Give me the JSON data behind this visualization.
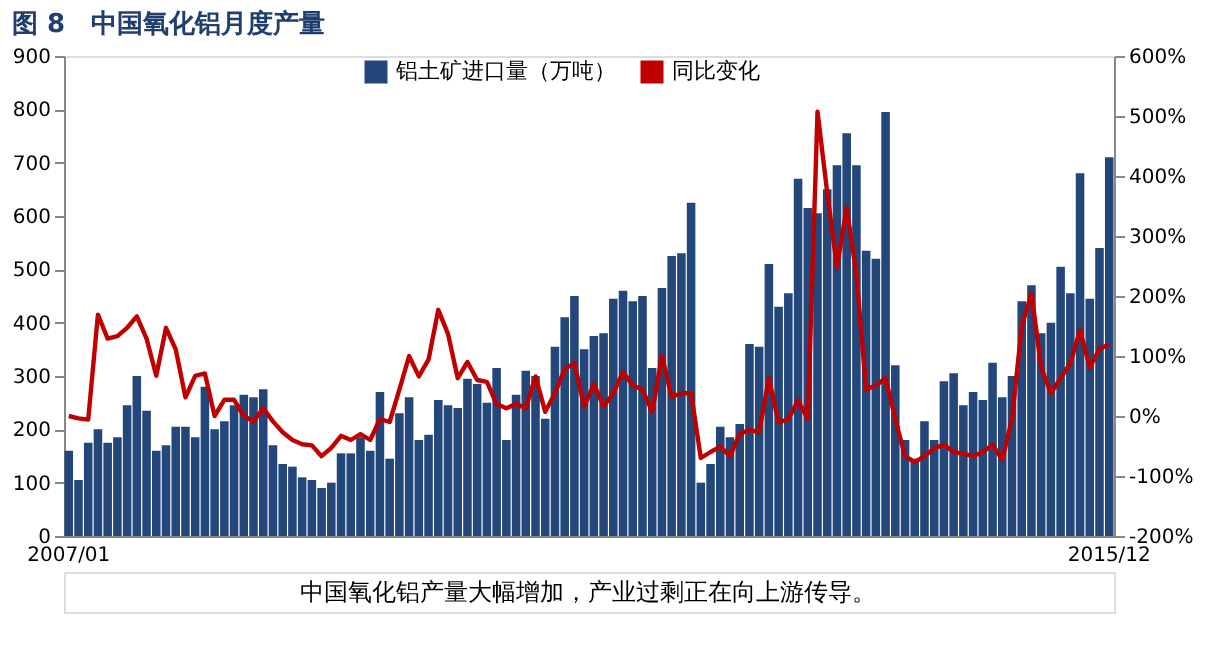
{
  "chart_data": {
    "type": "bar",
    "title": "图 8　中国氧化铝月度产量",
    "categories": [
      "2007/01",
      null,
      null,
      null,
      null,
      null,
      null,
      null,
      null,
      null,
      null,
      null,
      null,
      null,
      null,
      null,
      null,
      null,
      null,
      null,
      null,
      null,
      null,
      null,
      null,
      null,
      null,
      null,
      null,
      null,
      null,
      null,
      null,
      null,
      null,
      null,
      null,
      null,
      null,
      null,
      null,
      null,
      null,
      null,
      null,
      null,
      null,
      null,
      null,
      null,
      null,
      null,
      null,
      null,
      null,
      null,
      null,
      null,
      null,
      null,
      null,
      null,
      null,
      null,
      null,
      null,
      null,
      null,
      null,
      null,
      null,
      null,
      null,
      null,
      null,
      null,
      null,
      null,
      null,
      null,
      null,
      null,
      null,
      null,
      null,
      null,
      null,
      null,
      null,
      null,
      null,
      null,
      null,
      null,
      null,
      null,
      null,
      null,
      null,
      null,
      null,
      null,
      null,
      null,
      null,
      null,
      null,
      "2015/12"
    ],
    "series": [
      {
        "name": "铝土矿进口量（万吨）",
        "color": "#23477a",
        "values": [
          160,
          105,
          175,
          200,
          175,
          185,
          245,
          300,
          235,
          160,
          170,
          205,
          205,
          185,
          280,
          200,
          215,
          245,
          265,
          260,
          275,
          170,
          135,
          130,
          110,
          105,
          90,
          100,
          155,
          155,
          185,
          160,
          270,
          145,
          230,
          260,
          180,
          190,
          255,
          245,
          240,
          295,
          285,
          250,
          315,
          180,
          265,
          310,
          300,
          220,
          355,
          410,
          450,
          350,
          375,
          380,
          445,
          460,
          440,
          450,
          315,
          465,
          525,
          530,
          625,
          100,
          135,
          205,
          185,
          210,
          360,
          355,
          510,
          430,
          455,
          670,
          615,
          605,
          650,
          695,
          755,
          695,
          535,
          520,
          795,
          320,
          180,
          145,
          215,
          180,
          290,
          305,
          245,
          270,
          255,
          325,
          260,
          300,
          440,
          470,
          380,
          400,
          505,
          455,
          680,
          445,
          540,
          710
        ]
      },
      {
        "name": "同比变化",
        "type": "line",
        "axis": "y2",
        "color": "#c00000",
        "values": [
          0,
          -4,
          -6,
          169,
          129,
          133,
          147,
          166,
          129,
          67,
          147,
          111,
          31,
          67,
          71,
          0,
          27,
          27,
          0,
          -9,
          13,
          -9,
          -27,
          -40,
          -47,
          -49,
          -67,
          -53,
          -33,
          -40,
          -30,
          -40,
          -5,
          -10,
          44,
          100,
          66,
          94,
          177,
          137,
          63,
          90,
          60,
          57,
          20,
          13,
          20,
          13,
          66,
          7,
          38,
          78,
          88,
          16,
          53,
          16,
          38,
          73,
          51,
          44,
          7,
          100,
          32,
          38,
          38,
          -70,
          -60,
          -51,
          -67,
          -30,
          -23,
          -27,
          63,
          -11,
          -5,
          26,
          -5,
          507,
          372,
          248,
          347,
          236,
          44,
          51,
          63,
          -5,
          -67,
          -77,
          -67,
          -54,
          -48,
          -60,
          -63,
          -67,
          -60,
          -48,
          -73,
          -5,
          149,
          205,
          81,
          38,
          63,
          88,
          143,
          81,
          112,
          119
        ]
      }
    ],
    "ylim": [
      0,
      900
    ],
    "yticks": [
      0,
      100,
      200,
      300,
      400,
      500,
      600,
      700,
      800,
      900
    ],
    "y2lim": [
      -200,
      600
    ],
    "y2ticks": [
      {
        "value": -200,
        "label": "-200%"
      },
      {
        "value": -100,
        "label": "-100%"
      },
      {
        "value": 0,
        "label": "0%"
      },
      {
        "value": 100,
        "label": "100%"
      },
      {
        "value": 200,
        "label": "200%"
      },
      {
        "value": 300,
        "label": "300%"
      },
      {
        "value": 400,
        "label": "400%"
      },
      {
        "value": 500,
        "label": "500%"
      },
      {
        "value": 600,
        "label": "600%"
      }
    ],
    "grid": false,
    "legend": "top",
    "line_style": "solid",
    "marker": "none",
    "annotations": [
      "中国氧化铝产量大幅增加，产业过剩正在向上游传导。"
    ]
  }
}
